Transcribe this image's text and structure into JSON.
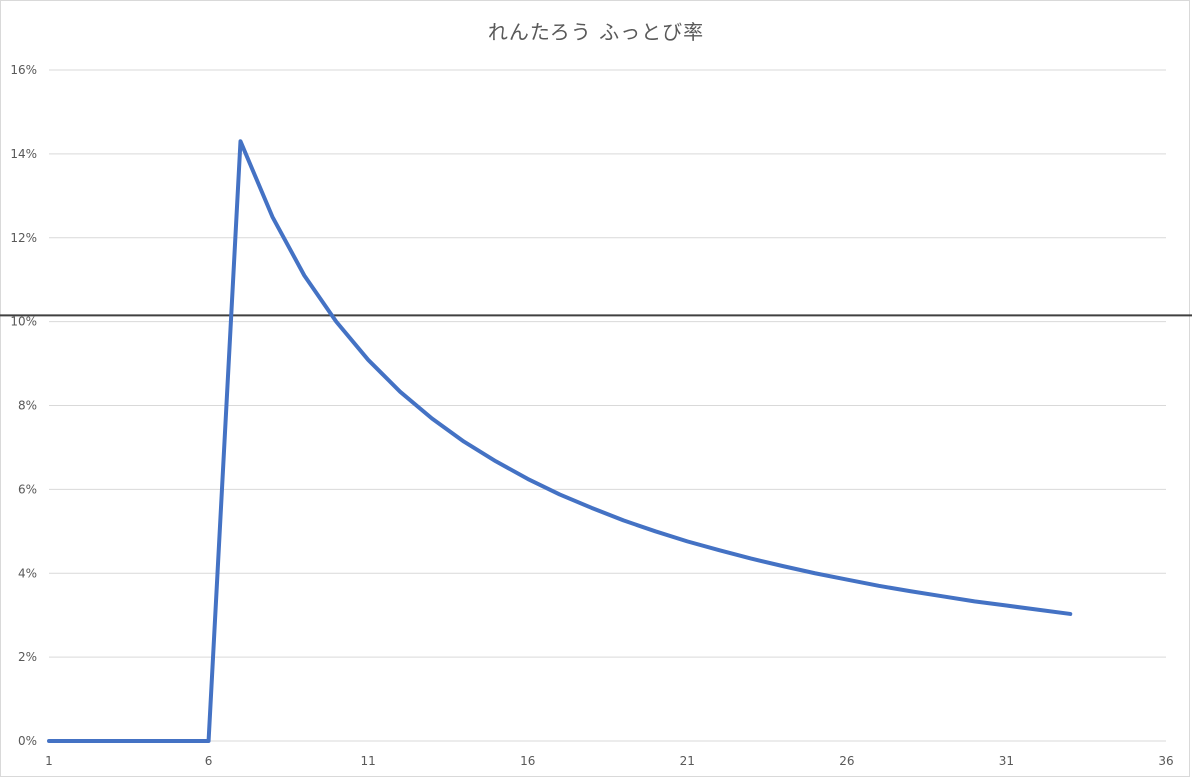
{
  "chart_data": {
    "type": "line",
    "title": "れんたろう ふっとび率",
    "xlabel": "",
    "ylabel": "",
    "xlim": [
      1,
      36
    ],
    "ylim": [
      0,
      0.16
    ],
    "x_ticks": [
      1,
      6,
      11,
      16,
      21,
      26,
      31,
      36
    ],
    "x_tick_labels": [
      "1",
      "6",
      "11",
      "16",
      "21",
      "26",
      "31",
      "36"
    ],
    "y_ticks": [
      0,
      0.02,
      0.04,
      0.06,
      0.08,
      0.1,
      0.12,
      0.14,
      0.16
    ],
    "y_tick_labels": [
      "0%",
      "2%",
      "4%",
      "6%",
      "8%",
      "10%",
      "12%",
      "14%",
      "16%"
    ],
    "grid": true,
    "legend": "none",
    "reference_line": {
      "y": 0.1015,
      "color": "#404040"
    },
    "series": [
      {
        "color": "#4472C4",
        "x": [
          1,
          2,
          3,
          4,
          5,
          6,
          7,
          8,
          9,
          10,
          11,
          12,
          13,
          14,
          15,
          16,
          17,
          18,
          19,
          20,
          21,
          22,
          23,
          24,
          25,
          26,
          27,
          28,
          29,
          30,
          31,
          32,
          33
        ],
        "values": [
          0,
          0,
          0,
          0,
          0,
          0,
          0.143,
          0.125,
          0.111,
          0.1,
          0.0909,
          0.0833,
          0.0769,
          0.0714,
          0.0667,
          0.0625,
          0.0588,
          0.0556,
          0.0526,
          0.05,
          0.0476,
          0.0455,
          0.0435,
          0.0417,
          0.04,
          0.0385,
          0.037,
          0.0357,
          0.0345,
          0.0333,
          0.0323,
          0.0313,
          0.0303
        ]
      }
    ]
  }
}
